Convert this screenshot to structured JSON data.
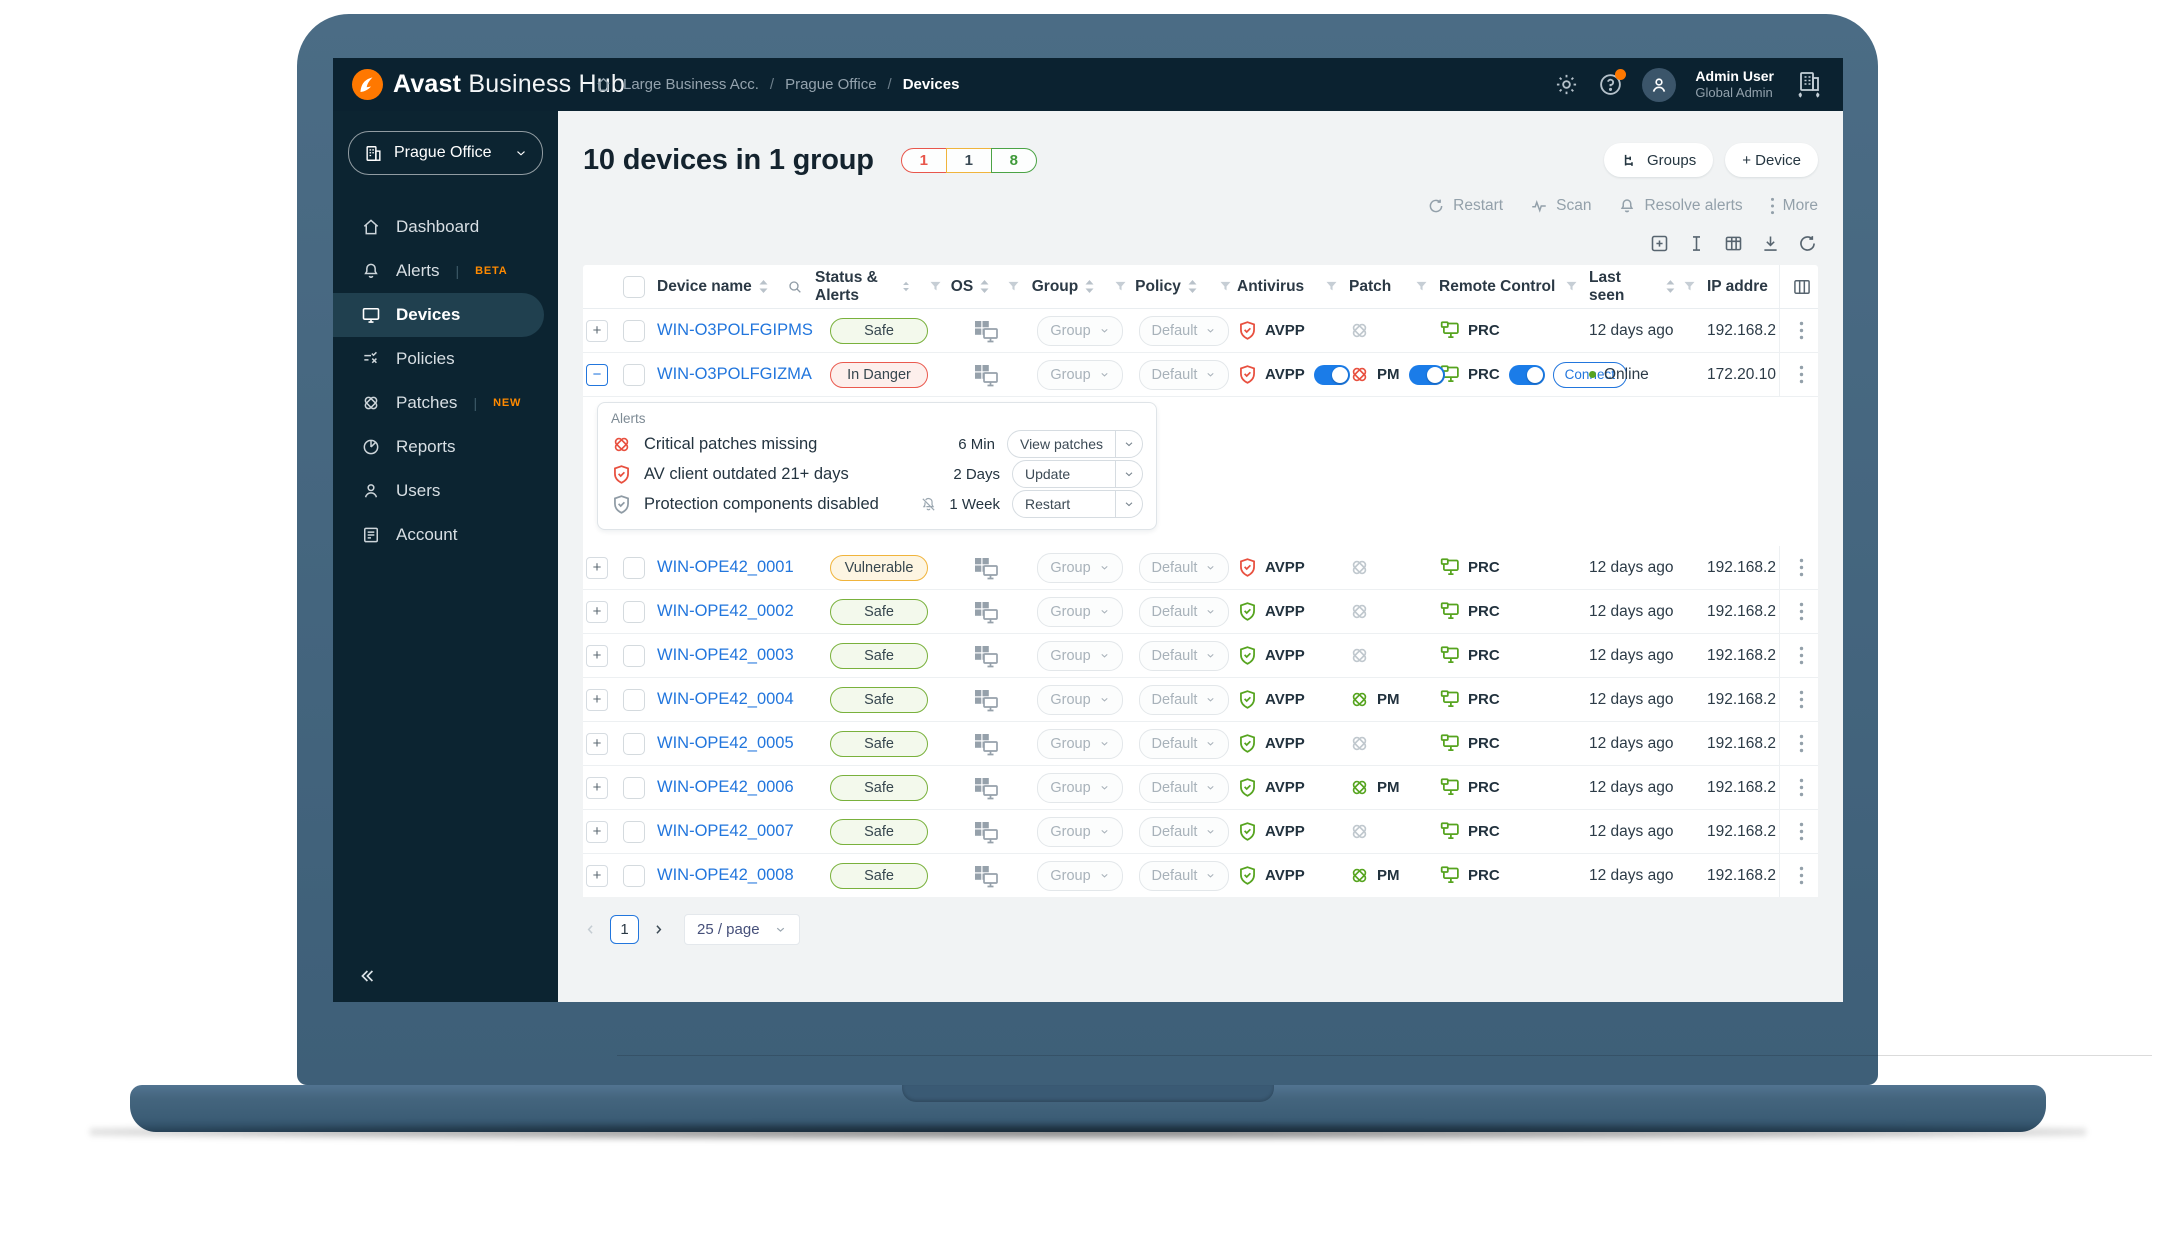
{
  "colors": {
    "accent_orange": "#ff7800",
    "link_blue": "#2276dd",
    "safe_green": "#56a41f",
    "warn_amber": "#f0b43c",
    "danger_red": "#e8503f",
    "toggle_blue": "#1b7ce8"
  },
  "topbar": {
    "brand_bold": "Avast",
    "brand_light": "Business Hub",
    "breadcrumb": [
      "Large Business Acc.",
      "Prague Office",
      "Devices"
    ],
    "user": {
      "name": "Admin User",
      "role": "Global Admin"
    }
  },
  "sidebar": {
    "org_selector": "Prague Office",
    "items": [
      {
        "label": "Dashboard"
      },
      {
        "label": "Alerts",
        "badge": "BETA"
      },
      {
        "label": "Devices",
        "active": true
      },
      {
        "label": "Policies"
      },
      {
        "label": "Patches",
        "badge": "NEW"
      },
      {
        "label": "Reports"
      },
      {
        "label": "Users"
      },
      {
        "label": "Account"
      }
    ]
  },
  "page": {
    "title": "10 devices in 1 group",
    "counts": [
      {
        "value": "1",
        "variant": "red"
      },
      {
        "value": "1",
        "variant": "amber"
      },
      {
        "value": "8",
        "variant": "green"
      }
    ],
    "groups_button": "Groups",
    "device_button": "+ Device",
    "bulk_actions": [
      {
        "label": "Restart",
        "icon": "restart-icon"
      },
      {
        "label": "Scan",
        "icon": "scan-icon"
      },
      {
        "label": "Resolve alerts",
        "icon": "bell-icon"
      },
      {
        "label": "More",
        "icon": "kebab-icon"
      }
    ]
  },
  "table": {
    "columns": [
      {
        "label": "Device name",
        "sort": true,
        "search": true
      },
      {
        "label": "Status & Alerts",
        "sort": true,
        "filter": true
      },
      {
        "label": "OS",
        "sort": true,
        "filter": true
      },
      {
        "label": "Group",
        "sort": true,
        "filter": true
      },
      {
        "label": "Policy",
        "sort": true,
        "filter": true
      },
      {
        "label": "Antivirus",
        "filter": true
      },
      {
        "label": "Patch",
        "filter": true
      },
      {
        "label": "Remote Control",
        "filter": true
      },
      {
        "label": "Last seen",
        "sort": true,
        "filter": true
      },
      {
        "label": "IP addre"
      }
    ],
    "group_placeholder": "Group",
    "policy_placeholder": "Default",
    "rows": [
      {
        "name": "WIN-O3POLFGIPMS",
        "status": "Safe",
        "variant": "safe",
        "av": {
          "label": "AVPP",
          "color": "red"
        },
        "patch": {
          "color": "gray"
        },
        "rc": {
          "label": "PRC"
        },
        "seen": "12 days ago",
        "ip": "192.168.2"
      },
      {
        "name": "WIN-O3POLFGIZMA",
        "status": "In Danger",
        "variant": "danger",
        "expanded": true,
        "av": {
          "label": "AVPP",
          "color": "red",
          "toggle": true
        },
        "patch": {
          "label": "PM",
          "color": "red",
          "toggle": true
        },
        "rc": {
          "label": "PRC",
          "toggle": true,
          "connect": "Connect"
        },
        "seen": "Online",
        "online": true,
        "ip": "172.20.10"
      },
      {
        "name": "WIN-OPE42_0001",
        "status": "Vulnerable",
        "variant": "vulnerable",
        "av": {
          "label": "AVPP",
          "color": "red"
        },
        "patch": {
          "color": "gray"
        },
        "rc": {
          "label": "PRC"
        },
        "seen": "12 days ago",
        "ip": "192.168.2"
      },
      {
        "name": "WIN-OPE42_0002",
        "status": "Safe",
        "variant": "safe",
        "av": {
          "label": "AVPP",
          "color": "green"
        },
        "patch": {
          "color": "gray"
        },
        "rc": {
          "label": "PRC"
        },
        "seen": "12 days ago",
        "ip": "192.168.2"
      },
      {
        "name": "WIN-OPE42_0003",
        "status": "Safe",
        "variant": "safe",
        "av": {
          "label": "AVPP",
          "color": "green"
        },
        "patch": {
          "color": "gray"
        },
        "rc": {
          "label": "PRC"
        },
        "seen": "12 days ago",
        "ip": "192.168.2"
      },
      {
        "name": "WIN-OPE42_0004",
        "status": "Safe",
        "variant": "safe",
        "av": {
          "label": "AVPP",
          "color": "green"
        },
        "patch": {
          "label": "PM",
          "color": "green"
        },
        "rc": {
          "label": "PRC"
        },
        "seen": "12 days ago",
        "ip": "192.168.2"
      },
      {
        "name": "WIN-OPE42_0005",
        "status": "Safe",
        "variant": "safe",
        "av": {
          "label": "AVPP",
          "color": "green"
        },
        "patch": {
          "color": "gray"
        },
        "rc": {
          "label": "PRC"
        },
        "seen": "12 days ago",
        "ip": "192.168.2"
      },
      {
        "name": "WIN-OPE42_0006",
        "status": "Safe",
        "variant": "safe",
        "av": {
          "label": "AVPP",
          "color": "green"
        },
        "patch": {
          "label": "PM",
          "color": "green"
        },
        "rc": {
          "label": "PRC"
        },
        "seen": "12 days ago",
        "ip": "192.168.2"
      },
      {
        "name": "WIN-OPE42_0007",
        "status": "Safe",
        "variant": "safe",
        "av": {
          "label": "AVPP",
          "color": "green"
        },
        "patch": {
          "color": "gray"
        },
        "rc": {
          "label": "PRC"
        },
        "seen": "12 days ago",
        "ip": "192.168.2"
      },
      {
        "name": "WIN-OPE42_0008",
        "status": "Safe",
        "variant": "safe",
        "av": {
          "label": "AVPP",
          "color": "green"
        },
        "patch": {
          "label": "PM",
          "color": "green"
        },
        "rc": {
          "label": "PRC"
        },
        "seen": "12 days ago",
        "ip": "192.168.2"
      }
    ]
  },
  "alerts_panel": {
    "title": "Alerts",
    "items": [
      {
        "icon": "patch-alert-icon",
        "text": "Critical patches missing",
        "age": "6 Min",
        "action": "View patches"
      },
      {
        "icon": "shield-alert-icon",
        "text": "AV client outdated 21+ days",
        "age": "2 Days",
        "action": "Update"
      },
      {
        "icon": "shield-disabled-icon",
        "text": "Protection components disabled",
        "age": "1 Week",
        "action": "Restart",
        "muted": true
      }
    ]
  },
  "pagination": {
    "page": "1",
    "page_size": "25 / page"
  }
}
